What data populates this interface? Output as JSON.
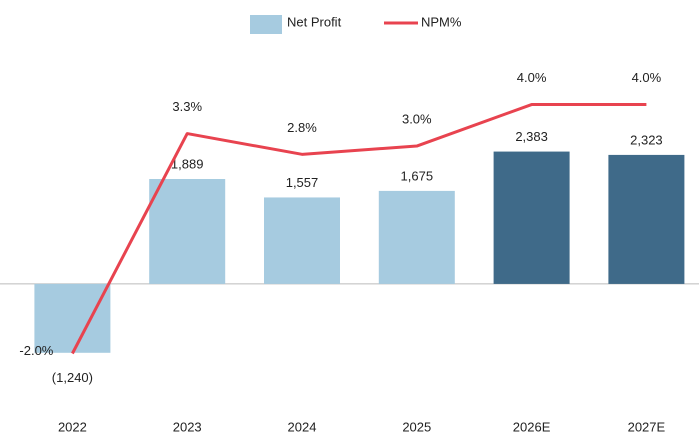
{
  "chart_data": {
    "type": "bar-line",
    "categories": [
      "2022",
      "2023",
      "2024",
      "2025",
      "2026E",
      "2027E"
    ],
    "series": [
      {
        "name": "Net Profit",
        "type": "bar",
        "color": "#a6cbe0",
        "colors": [
          "#a6cbe0",
          "#a6cbe0",
          "#a6cbe0",
          "#a6cbe0",
          "#3f6a89",
          "#3f6a89"
        ],
        "values": [
          -1240,
          1889,
          1557,
          1675,
          2383,
          2323
        ],
        "value_labels": [
          "(1,240)",
          "1,889",
          "1,557",
          "1,675",
          "2,383",
          "2,323"
        ]
      },
      {
        "name": "NPM%",
        "type": "line",
        "axis": "y2",
        "color": "#e8434f",
        "values": [
          -2.0,
          3.3,
          2.8,
          3.0,
          4.0,
          4.0
        ],
        "value_labels": [
          "-2.0%",
          "3.3%",
          "2.8%",
          "3.0%",
          "4.0%",
          "4.0%"
        ]
      }
    ],
    "ylim": [
      -2000,
      4500
    ],
    "y2lim": [
      -3,
      5.7
    ],
    "legend": "top"
  }
}
